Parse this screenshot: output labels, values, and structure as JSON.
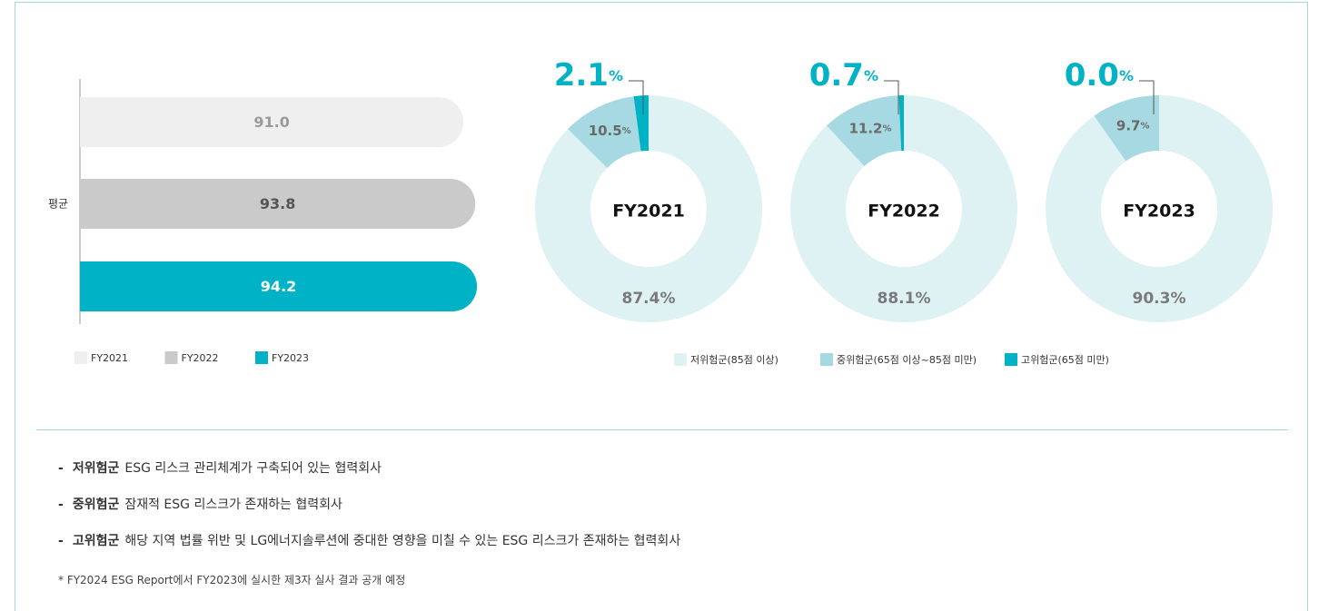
{
  "chart_data": [
    {
      "type": "bar",
      "orientation": "horizontal",
      "categories": [
        "평균"
      ],
      "series": [
        {
          "name": "FY2021",
          "color": "#efefef",
          "label_color": "#9a9a9a",
          "values": [
            91.0
          ],
          "value_labels": [
            "91.0"
          ]
        },
        {
          "name": "FY2022",
          "color": "#c9cac9",
          "label_color": "#555555",
          "values": [
            93.8
          ],
          "value_labels": [
            "93.8"
          ]
        },
        {
          "name": "FY2023",
          "color": "#00b2c5",
          "label_color": "#ffffff",
          "values": [
            94.2
          ],
          "value_labels": [
            "94.2"
          ]
        }
      ]
    },
    {
      "type": "pie",
      "donut": true,
      "categories": [
        "저위험군(85점 이상)",
        "중위험군(65점 이상~85점 미만)",
        "고위험군(65점 미만)"
      ],
      "colors": [
        "#def1f3",
        "#a6d9e1",
        "#00b2c5"
      ],
      "panels": [
        {
          "title": "FY2021",
          "values": [
            87.4,
            10.5,
            2.1
          ],
          "value_labels": [
            "87.4%",
            "10.5%",
            "2.1%"
          ]
        },
        {
          "title": "FY2022",
          "values": [
            88.1,
            11.2,
            0.7
          ],
          "value_labels": [
            "88.1%",
            "11.2%",
            "0.7%"
          ]
        },
        {
          "title": "FY2023",
          "values": [
            90.3,
            9.7,
            0.0
          ],
          "value_labels": [
            "90.3%",
            "9.7%",
            "0.0%"
          ]
        }
      ]
    }
  ],
  "notes": [
    {
      "term": "저위험군",
      "text": "ESG 리스크 관리체계가 구축되어 있는 협력회사"
    },
    {
      "term": "중위험군",
      "text": "잠재적 ESG 리스크가 존재하는 협력회사"
    },
    {
      "term": "고위험군",
      "text": "해당 지역 법률 위반 및 LG에너지솔루션에 중대한 영향을 미칠 수 있는 ESG 리스크가 존재하는 협력회사"
    }
  ],
  "footnote": "* FY2024 ESG Report에서 FY2023에 실시한 제3자 실사 결과 공개 예정"
}
